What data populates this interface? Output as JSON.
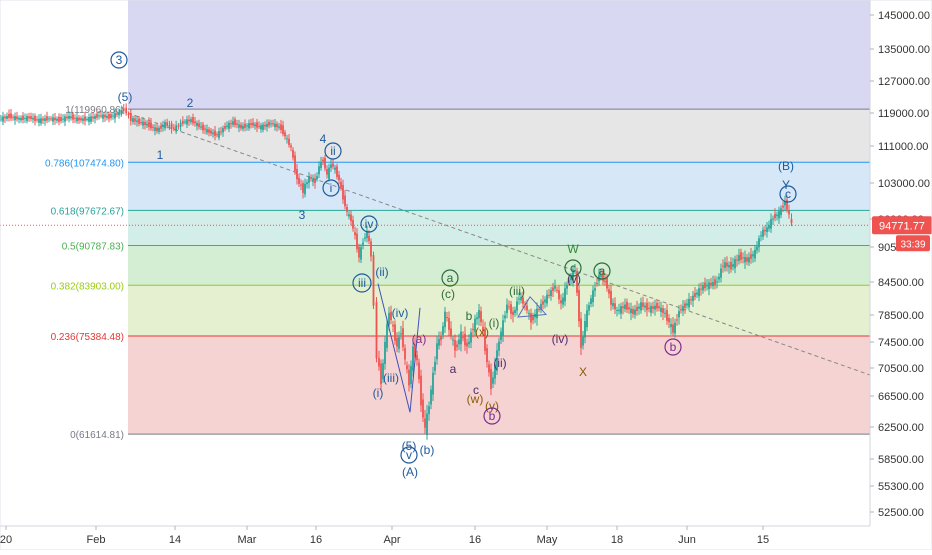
{
  "chart_data": {
    "type": "candlestick",
    "x_ticks": [
      "20",
      "Feb",
      "14",
      "Mar",
      "16",
      "Apr",
      "16",
      "May",
      "18",
      "Jun",
      "15"
    ],
    "y_ticks": [
      145000,
      135000,
      127000,
      119000,
      111000,
      103000,
      96000,
      90500,
      84500,
      78500,
      74500,
      70500,
      66500,
      62500,
      58500,
      55300,
      52500
    ],
    "y_tick_labels": [
      "145000.00",
      "135000.00",
      "127000.00",
      "119000.00",
      "111000.00",
      "103000.00",
      "96000.00",
      "90500.00",
      "84500.00",
      "78500.00",
      "74500.00",
      "70500.00",
      "66500.00",
      "62500.00",
      "58500.00",
      "55300.00",
      "52500.00"
    ],
    "ylim": [
      50500,
      148500
    ],
    "last_price": {
      "value": 94771.77,
      "label": "94771.77",
      "countdown": "33:39"
    },
    "fib_levels": [
      {
        "ratio": 1,
        "price": 119960.86,
        "label": "1(119960.86)",
        "color": "#787b86"
      },
      {
        "ratio": 0.786,
        "price": 107474.8,
        "label": "0.786(107474.80)",
        "color": "#2196f3"
      },
      {
        "ratio": 0.618,
        "price": 97672.67,
        "label": "0.618(97672.67)",
        "color": "#26a69a"
      },
      {
        "ratio": 0.5,
        "price": 90787.83,
        "label": "0.5(90787.83)",
        "color": "#4caf50"
      },
      {
        "ratio": 0.382,
        "price": 83903.0,
        "label": "0.382(83903.00)",
        "color": "#9ccc11"
      },
      {
        "ratio": 0.236,
        "price": 75384.48,
        "label": "0.236(75384.48)",
        "color": "#e53935"
      },
      {
        "ratio": 0,
        "price": 61614.81,
        "label": "0(61614.81)",
        "color": "#787b86"
      }
    ],
    "wave_labels": [
      {
        "text": "3",
        "style": "circle",
        "color": "#1e5a9c"
      },
      {
        "text": "(5)",
        "style": "plain",
        "color": "#1e5a9c"
      },
      {
        "text": "2",
        "style": "plain",
        "color": "#1e5a9c"
      },
      {
        "text": "1",
        "style": "plain",
        "color": "#1e5a9c"
      },
      {
        "text": "4",
        "style": "plain",
        "color": "#1e5a9c"
      },
      {
        "text": "3",
        "style": "plain",
        "color": "#1e5a9c"
      },
      {
        "text": "ii",
        "style": "circle",
        "color": "#1e5a9c"
      },
      {
        "text": "i",
        "style": "circle",
        "color": "#1e5a9c"
      },
      {
        "text": "iv",
        "style": "circle",
        "color": "#1e5a9c"
      },
      {
        "text": "iii",
        "style": "circle",
        "color": "#1e5a9c"
      },
      {
        "text": "(ii)",
        "style": "plain",
        "color": "#1e5a9c"
      },
      {
        "text": "(iv)",
        "style": "plain",
        "color": "#1e5a9c"
      },
      {
        "text": "(iii)",
        "style": "plain",
        "color": "#1e5a9c"
      },
      {
        "text": "(i)",
        "style": "plain",
        "color": "#1e5a9c"
      },
      {
        "text": "(5)",
        "style": "plain",
        "color": "#1e5a9c"
      },
      {
        "text": "v",
        "style": "circle",
        "color": "#1e5a9c"
      },
      {
        "text": "(A)",
        "style": "plain",
        "color": "#1e5a9c"
      },
      {
        "text": "(b)",
        "style": "plain",
        "color": "#1e5a9c"
      },
      {
        "text": "(a)",
        "style": "plain",
        "color": "#7b2d8b"
      },
      {
        "text": "a",
        "style": "circle",
        "color": "#2e6b3a"
      },
      {
        "text": "(c)",
        "style": "plain",
        "color": "#2e6b3a"
      },
      {
        "text": "b",
        "style": "plain",
        "color": "#2e6b3a"
      },
      {
        "text": "a",
        "style": "plain",
        "color": "#4b2d6b"
      },
      {
        "text": "(x)",
        "style": "plain",
        "color": "#8b5a00"
      },
      {
        "text": "(i)",
        "style": "plain",
        "color": "#2e6b3a"
      },
      {
        "text": "(iii)",
        "style": "plain",
        "color": "#2e6b3a"
      },
      {
        "text": "(ii)",
        "style": "plain",
        "color": "#4b2d6b"
      },
      {
        "text": "c",
        "style": "plain",
        "color": "#4b2d6b"
      },
      {
        "text": "(w)",
        "style": "plain",
        "color": "#8b5a00"
      },
      {
        "text": "(y)",
        "style": "plain",
        "color": "#8b5a00"
      },
      {
        "text": "b",
        "style": "circle",
        "color": "#7b2d8b"
      },
      {
        "text": "W",
        "style": "plain",
        "color": "#2e8b3a"
      },
      {
        "text": "c",
        "style": "circle",
        "color": "#2e6b3a"
      },
      {
        "text": "(v)",
        "style": "plain",
        "color": "#4b2d6b"
      },
      {
        "text": "a",
        "style": "circle",
        "color": "#2e6b3a"
      },
      {
        "text": "(iv)",
        "style": "plain",
        "color": "#4b2d6b"
      },
      {
        "text": "X",
        "style": "plain",
        "color": "#8b5a00"
      },
      {
        "text": "b",
        "style": "circle",
        "color": "#7b2d8b"
      },
      {
        "text": "(B)",
        "style": "plain",
        "color": "#1e5a9c"
      },
      {
        "text": "Y",
        "style": "plain",
        "color": "#1e5a9c"
      },
      {
        "text": "c",
        "style": "circle",
        "color": "#1e5a9c"
      }
    ],
    "price_path": [
      [
        0,
        117500
      ],
      [
        10,
        118200
      ],
      [
        20,
        117600
      ],
      [
        30,
        117900
      ],
      [
        40,
        117200
      ],
      [
        50,
        117700
      ],
      [
        60,
        117300
      ],
      [
        70,
        118100
      ],
      [
        80,
        117400
      ],
      [
        90,
        117600
      ],
      [
        100,
        118400
      ],
      [
        110,
        118000
      ],
      [
        120,
        119000
      ],
      [
        125,
        119960
      ],
      [
        132,
        117500
      ],
      [
        140,
        116800
      ],
      [
        150,
        116000
      ],
      [
        158,
        114800
      ],
      [
        166,
        116400
      ],
      [
        175,
        115200
      ],
      [
        184,
        116800
      ],
      [
        192,
        117300
      ],
      [
        200,
        115800
      ],
      [
        210,
        114400
      ],
      [
        218,
        113700
      ],
      [
        226,
        115600
      ],
      [
        234,
        116800
      ],
      [
        242,
        115500
      ],
      [
        252,
        116300
      ],
      [
        262,
        115600
      ],
      [
        272,
        116500
      ],
      [
        282,
        115300
      ],
      [
        292,
        110500
      ],
      [
        298,
        103800
      ],
      [
        304,
        101500
      ],
      [
        310,
        104300
      ],
      [
        316,
        103200
      ],
      [
        320,
        106600
      ],
      [
        324,
        108100
      ],
      [
        328,
        104600
      ],
      [
        332,
        107200
      ],
      [
        336,
        105900
      ],
      [
        340,
        103600
      ],
      [
        344,
        100200
      ],
      [
        348,
        97200
      ],
      [
        352,
        95800
      ],
      [
        356,
        92400
      ],
      [
        360,
        88700
      ],
      [
        364,
        91800
      ],
      [
        368,
        93400
      ],
      [
        372,
        89100
      ],
      [
        375,
        80200
      ],
      [
        378,
        72400
      ],
      [
        382,
        68600
      ],
      [
        386,
        74300
      ],
      [
        390,
        79100
      ],
      [
        394,
        76400
      ],
      [
        398,
        73800
      ],
      [
        402,
        76200
      ],
      [
        406,
        71600
      ],
      [
        410,
        68200
      ],
      [
        414,
        73400
      ],
      [
        418,
        71700
      ],
      [
        422,
        65700
      ],
      [
        426,
        62200
      ],
      [
        430,
        65400
      ],
      [
        434,
        69400
      ],
      [
        438,
        74300
      ],
      [
        442,
        75200
      ],
      [
        446,
        78900
      ],
      [
        450,
        76500
      ],
      [
        456,
        73400
      ],
      [
        462,
        75600
      ],
      [
        468,
        73800
      ],
      [
        474,
        76700
      ],
      [
        480,
        79200
      ],
      [
        484,
        75700
      ],
      [
        488,
        71400
      ],
      [
        492,
        67900
      ],
      [
        496,
        70800
      ],
      [
        500,
        74800
      ],
      [
        504,
        77300
      ],
      [
        508,
        80400
      ],
      [
        514,
        78500
      ],
      [
        520,
        81900
      ],
      [
        526,
        80200
      ],
      [
        532,
        77600
      ],
      [
        540,
        79800
      ],
      [
        548,
        81800
      ],
      [
        556,
        83800
      ],
      [
        562,
        80400
      ],
      [
        568,
        84200
      ],
      [
        576,
        86700
      ],
      [
        582,
        73600
      ],
      [
        586,
        77400
      ],
      [
        590,
        80500
      ],
      [
        596,
        83600
      ],
      [
        600,
        85700
      ],
      [
        606,
        84900
      ],
      [
        612,
        80800
      ],
      [
        618,
        79200
      ],
      [
        626,
        80200
      ],
      [
        634,
        78900
      ],
      [
        642,
        80400
      ],
      [
        650,
        79600
      ],
      [
        658,
        80100
      ],
      [
        666,
        78700
      ],
      [
        674,
        76100
      ],
      [
        680,
        79200
      ],
      [
        688,
        80600
      ],
      [
        696,
        82200
      ],
      [
        704,
        83700
      ],
      [
        712,
        84100
      ],
      [
        718,
        84600
      ],
      [
        724,
        87600
      ],
      [
        732,
        87100
      ],
      [
        740,
        88900
      ],
      [
        748,
        88200
      ],
      [
        756,
        89600
      ],
      [
        762,
        93200
      ],
      [
        768,
        94100
      ],
      [
        774,
        96300
      ],
      [
        780,
        97100
      ],
      [
        786,
        99400
      ],
      [
        790,
        96700
      ],
      [
        793,
        94771
      ]
    ],
    "trendline": {
      "from": [
        128,
        119000
      ],
      "to": [
        870,
        69500
      ],
      "style": "dashed"
    },
    "triangle": [
      [
        518,
        78200
      ],
      [
        530,
        81800
      ],
      [
        546,
        78600
      ]
    ],
    "wedge": [
      [
        378,
        84200
      ],
      [
        410,
        64400
      ],
      [
        420,
        79800
      ]
    ]
  }
}
